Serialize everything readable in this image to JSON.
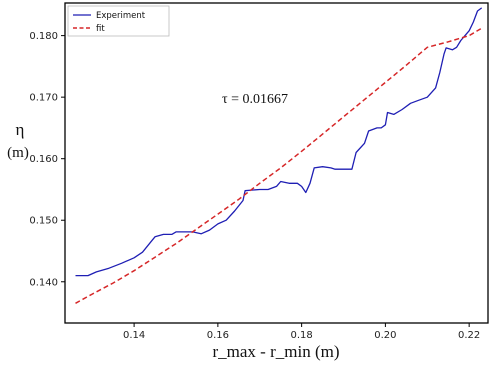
{
  "chart_data": {
    "type": "line",
    "title": "",
    "xlabel": "r_max - r_min (m)",
    "ylabel_symbol": "η",
    "ylabel_unit": "(m)",
    "xlim": [
      0.1235,
      0.2245
    ],
    "ylim": [
      0.1333,
      0.1853
    ],
    "xticks": [
      0.14,
      0.16,
      0.18,
      0.2,
      0.22
    ],
    "xtick_labels": [
      "0.14",
      "0.16",
      "0.18",
      "0.20",
      "0.22"
    ],
    "yticks": [
      0.14,
      0.15,
      0.16,
      0.17,
      0.18
    ],
    "ytick_labels": [
      "0.140",
      "0.150",
      "0.160",
      "0.170",
      "0.180"
    ],
    "annotation": "τ = 0.01667",
    "legend_position": "top-left",
    "grid": false,
    "series": [
      {
        "name": "Experiment",
        "color": "#1f1fb4",
        "style": "solid",
        "points": [
          [
            0.126,
            0.141
          ],
          [
            0.129,
            0.141
          ],
          [
            0.131,
            0.1416
          ],
          [
            0.134,
            0.1422
          ],
          [
            0.137,
            0.143
          ],
          [
            0.14,
            0.1439
          ],
          [
            0.142,
            0.1448
          ],
          [
            0.144,
            0.1465
          ],
          [
            0.145,
            0.1473
          ],
          [
            0.147,
            0.1477
          ],
          [
            0.149,
            0.1477
          ],
          [
            0.15,
            0.1481
          ],
          [
            0.152,
            0.1481
          ],
          [
            0.154,
            0.1481
          ],
          [
            0.156,
            0.1478
          ],
          [
            0.158,
            0.1484
          ],
          [
            0.16,
            0.1494
          ],
          [
            0.162,
            0.15
          ],
          [
            0.164,
            0.1515
          ],
          [
            0.166,
            0.1532
          ],
          [
            0.1665,
            0.1548
          ],
          [
            0.168,
            0.1549
          ],
          [
            0.17,
            0.155
          ],
          [
            0.172,
            0.155
          ],
          [
            0.174,
            0.1555
          ],
          [
            0.175,
            0.1563
          ],
          [
            0.177,
            0.156
          ],
          [
            0.179,
            0.156
          ],
          [
            0.18,
            0.1555
          ],
          [
            0.181,
            0.1545
          ],
          [
            0.182,
            0.156
          ],
          [
            0.183,
            0.1585
          ],
          [
            0.185,
            0.1587
          ],
          [
            0.187,
            0.1585
          ],
          [
            0.188,
            0.1583
          ],
          [
            0.19,
            0.1583
          ],
          [
            0.192,
            0.1583
          ],
          [
            0.193,
            0.161
          ],
          [
            0.195,
            0.1625
          ],
          [
            0.196,
            0.1645
          ],
          [
            0.198,
            0.165
          ],
          [
            0.199,
            0.165
          ],
          [
            0.2,
            0.1655
          ],
          [
            0.2005,
            0.1675
          ],
          [
            0.202,
            0.1672
          ],
          [
            0.204,
            0.168
          ],
          [
            0.206,
            0.169
          ],
          [
            0.208,
            0.1695
          ],
          [
            0.21,
            0.17
          ],
          [
            0.212,
            0.1715
          ],
          [
            0.213,
            0.174
          ],
          [
            0.214,
            0.177
          ],
          [
            0.2145,
            0.178
          ],
          [
            0.216,
            0.1777
          ],
          [
            0.217,
            0.1781
          ],
          [
            0.218,
            0.1792
          ],
          [
            0.219,
            0.18
          ],
          [
            0.22,
            0.1808
          ],
          [
            0.221,
            0.1822
          ],
          [
            0.222,
            0.184
          ],
          [
            0.223,
            0.1845
          ]
        ]
      },
      {
        "name": "fit",
        "color": "#d62728",
        "style": "dashed",
        "points": [
          [
            0.126,
            0.1365
          ],
          [
            0.13,
            0.138
          ],
          [
            0.135,
            0.1398
          ],
          [
            0.14,
            0.1418
          ],
          [
            0.145,
            0.144
          ],
          [
            0.15,
            0.1462
          ],
          [
            0.155,
            0.1486
          ],
          [
            0.16,
            0.151
          ],
          [
            0.165,
            0.1534
          ],
          [
            0.17,
            0.156
          ],
          [
            0.175,
            0.1585
          ],
          [
            0.18,
            0.1612
          ],
          [
            0.185,
            0.164
          ],
          [
            0.19,
            0.1668
          ],
          [
            0.195,
            0.1696
          ],
          [
            0.2,
            0.1724
          ],
          [
            0.205,
            0.1752
          ],
          [
            0.21,
            0.1781
          ],
          [
            0.215,
            0.179
          ],
          [
            0.22,
            0.18
          ],
          [
            0.223,
            0.1812
          ]
        ]
      }
    ]
  }
}
